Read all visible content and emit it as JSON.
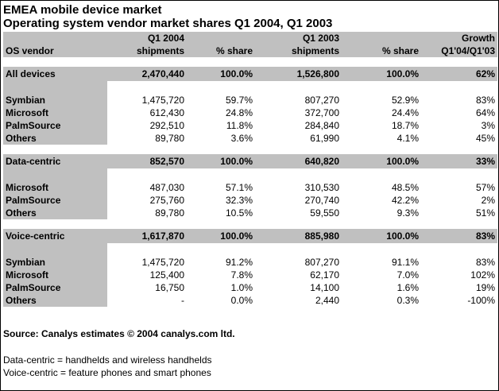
{
  "title": "EMEA mobile device market",
  "subtitle": "Operating system vendor market shares Q1 2004, Q1 2003",
  "headers": {
    "row1": [
      "",
      "Q1 2004",
      "",
      "Q1 2003",
      "",
      "Growth"
    ],
    "row2": [
      "OS vendor",
      "shipments",
      "% share",
      "shipments",
      "% share",
      "Q1'04/Q1'03"
    ]
  },
  "sections": [
    {
      "total": [
        "All devices",
        "2,470,440",
        "100.0%",
        "1,526,800",
        "100.0%",
        "62%"
      ],
      "rows": [
        [
          "Symbian",
          "1,475,720",
          "59.7%",
          "807,270",
          "52.9%",
          "83%"
        ],
        [
          "Microsoft",
          "612,430",
          "24.8%",
          "372,700",
          "24.4%",
          "64%"
        ],
        [
          "PalmSource",
          "292,510",
          "11.8%",
          "284,840",
          "18.7%",
          "3%"
        ],
        [
          "Others",
          "89,780",
          "3.6%",
          "61,990",
          "4.1%",
          "45%"
        ]
      ]
    },
    {
      "total": [
        "Data-centric",
        "852,570",
        "100.0%",
        "640,820",
        "100.0%",
        "33%"
      ],
      "rows": [
        [
          "Microsoft",
          "487,030",
          "57.1%",
          "310,530",
          "48.5%",
          "57%"
        ],
        [
          "PalmSource",
          "275,760",
          "32.3%",
          "270,740",
          "42.2%",
          "2%"
        ],
        [
          "Others",
          "89,780",
          "10.5%",
          "59,550",
          "9.3%",
          "51%"
        ]
      ]
    },
    {
      "total": [
        "Voice-centric",
        "1,617,870",
        "100.0%",
        "885,980",
        "100.0%",
        "83%"
      ],
      "rows": [
        [
          "Symbian",
          "1,475,720",
          "91.2%",
          "807,270",
          "91.1%",
          "83%"
        ],
        [
          "Microsoft",
          "125,400",
          "7.8%",
          "62,170",
          "7.0%",
          "102%"
        ],
        [
          "PalmSource",
          "16,750",
          "1.0%",
          "14,100",
          "1.6%",
          "19%"
        ],
        [
          "Others",
          "-",
          "0.0%",
          "2,440",
          "0.3%",
          "-100%"
        ]
      ]
    }
  ],
  "source": "Source: Canalys estimates © 2004 canalys.com ltd.",
  "notes": [
    "Data-centric = handhelds and wireless handhelds",
    "Voice-centric = feature phones and smart phones"
  ],
  "colors": {
    "shade": "#c0c0c0",
    "border": "#000000",
    "background": "#ffffff"
  }
}
